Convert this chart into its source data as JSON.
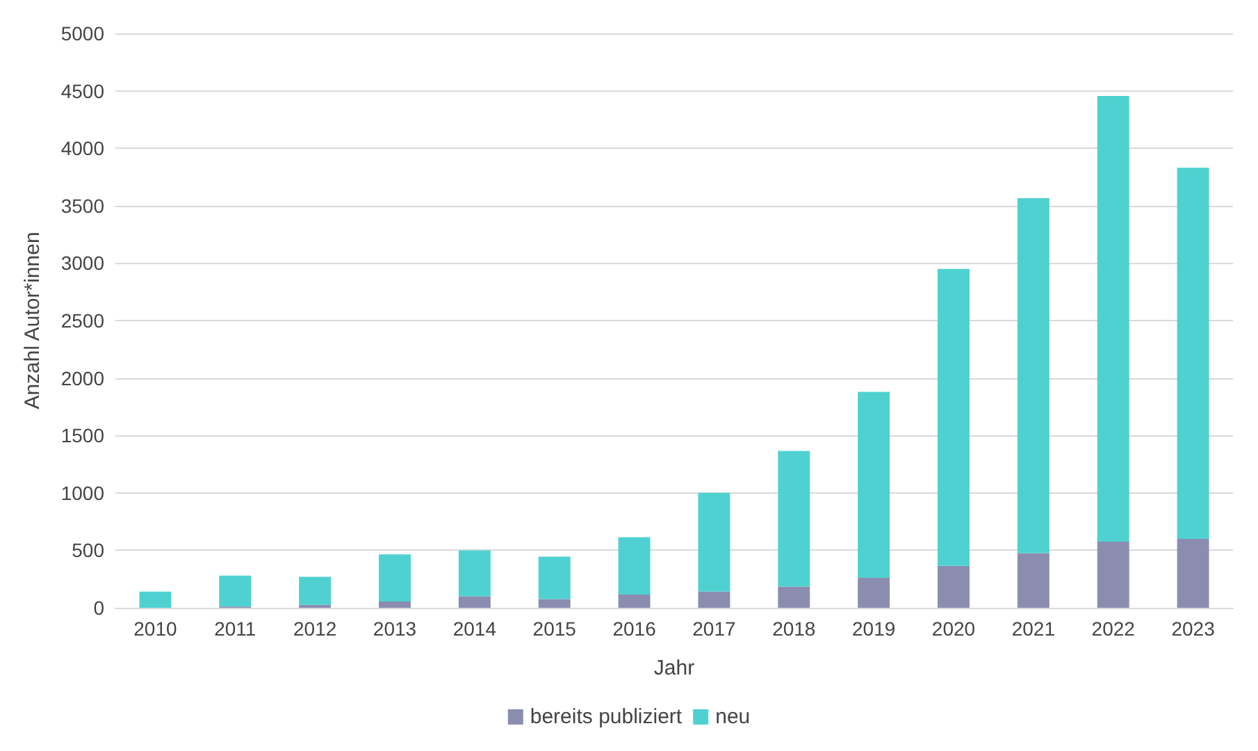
{
  "chart_data": {
    "type": "bar",
    "stacked": true,
    "xlabel": "Jahr",
    "ylabel": "Anzahl Autor*innen",
    "categories": [
      "2010",
      "2011",
      "2012",
      "2013",
      "2014",
      "2015",
      "2016",
      "2017",
      "2018",
      "2019",
      "2020",
      "2021",
      "2022",
      "2023"
    ],
    "series": [
      {
        "name": "bereits publiziert",
        "color": "#8b8db0",
        "values": [
          0,
          10,
          25,
          55,
          100,
          75,
          115,
          140,
          185,
          260,
          365,
          475,
          575,
          600
        ]
      },
      {
        "name": "neu",
        "color": "#4fd1d1",
        "values": [
          140,
          270,
          245,
          410,
          400,
          370,
          500,
          860,
          1180,
          1620,
          2585,
          3090,
          3880,
          3230
        ]
      }
    ],
    "ylim": [
      0,
      5000
    ],
    "yticks": [
      0,
      500,
      1000,
      1500,
      2000,
      2500,
      3000,
      3500,
      4000,
      4500,
      5000
    ],
    "grid": "y",
    "legend": "bottom"
  }
}
